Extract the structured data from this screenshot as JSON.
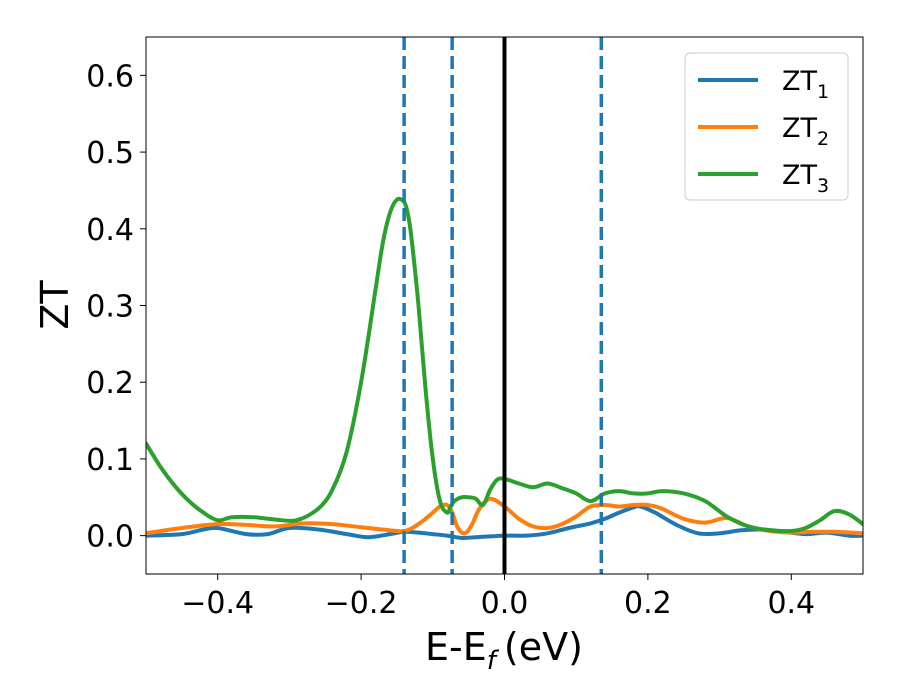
{
  "chart_data": {
    "type": "line",
    "title": "",
    "xlabel": {
      "main": "E-E",
      "sub": "f",
      "unit": "(eV)"
    },
    "ylabel": "ZT",
    "xlim": [
      -0.5,
      0.5
    ],
    "ylim": [
      -0.05,
      0.65
    ],
    "xticks": [
      -0.4,
      -0.2,
      0.0,
      0.2,
      0.4
    ],
    "xtick_labels": [
      "−0.4",
      "−0.2",
      "0.0",
      "0.2",
      "0.4"
    ],
    "yticks": [
      0.0,
      0.1,
      0.2,
      0.3,
      0.4,
      0.5,
      0.6
    ],
    "ytick_labels": [
      "0.0",
      "0.1",
      "0.2",
      "0.3",
      "0.4",
      "0.5",
      "0.6"
    ],
    "grid": false,
    "legend_position": "top-right",
    "vertical_lines": [
      {
        "x": 0.0,
        "style": "solid",
        "color": "#000000"
      },
      {
        "x": -0.14,
        "style": "dashed",
        "color": "#1f77b4"
      },
      {
        "x": -0.073,
        "style": "dashed",
        "color": "#1f77b4"
      },
      {
        "x": 0.135,
        "style": "dashed",
        "color": "#1f77b4"
      }
    ],
    "series": [
      {
        "name": "ZT1",
        "label_main": "ZT",
        "label_sub": "1",
        "color": "#1f77b4",
        "x": [
          -0.5,
          -0.45,
          -0.42,
          -0.4,
          -0.36,
          -0.33,
          -0.3,
          -0.26,
          -0.22,
          -0.19,
          -0.16,
          -0.14,
          -0.12,
          -0.1,
          -0.08,
          -0.06,
          -0.04,
          -0.02,
          0.0,
          0.03,
          0.06,
          0.09,
          0.12,
          0.14,
          0.16,
          0.18,
          0.19,
          0.21,
          0.24,
          0.27,
          0.3,
          0.33,
          0.36,
          0.39,
          0.42,
          0.45,
          0.48,
          0.5
        ],
        "y": [
          0.0,
          0.002,
          0.008,
          0.01,
          0.002,
          0.002,
          0.01,
          0.008,
          0.002,
          -0.002,
          0.002,
          0.005,
          0.004,
          0.002,
          0.0,
          -0.003,
          -0.002,
          -0.001,
          0.0,
          0.0,
          0.003,
          0.01,
          0.016,
          0.022,
          0.03,
          0.037,
          0.038,
          0.03,
          0.014,
          0.003,
          0.003,
          0.007,
          0.008,
          0.005,
          0.002,
          0.004,
          0.0,
          0.0
        ]
      },
      {
        "name": "ZT2",
        "label_main": "ZT",
        "label_sub": "2",
        "color": "#ff7f0e",
        "x": [
          -0.5,
          -0.45,
          -0.4,
          -0.36,
          -0.32,
          -0.28,
          -0.24,
          -0.2,
          -0.17,
          -0.14,
          -0.12,
          -0.1,
          -0.09,
          -0.08,
          -0.073,
          -0.065,
          -0.055,
          -0.045,
          -0.035,
          -0.02,
          0.0,
          0.02,
          0.04,
          0.06,
          0.08,
          0.1,
          0.12,
          0.14,
          0.16,
          0.18,
          0.2,
          0.22,
          0.25,
          0.28,
          0.31,
          0.34,
          0.37,
          0.4,
          0.43,
          0.46,
          0.5
        ],
        "y": [
          0.003,
          0.01,
          0.015,
          0.014,
          0.012,
          0.016,
          0.015,
          0.011,
          0.008,
          0.006,
          0.015,
          0.03,
          0.038,
          0.04,
          0.03,
          0.01,
          0.003,
          0.015,
          0.035,
          0.048,
          0.038,
          0.022,
          0.012,
          0.01,
          0.015,
          0.025,
          0.038,
          0.04,
          0.038,
          0.04,
          0.04,
          0.035,
          0.022,
          0.017,
          0.023,
          0.012,
          0.006,
          0.004,
          0.005,
          0.005,
          0.003
        ]
      },
      {
        "name": "ZT3",
        "label_main": "ZT",
        "label_sub": "3",
        "color": "#2ca02c",
        "x": [
          -0.5,
          -0.48,
          -0.46,
          -0.44,
          -0.42,
          -0.4,
          -0.38,
          -0.35,
          -0.32,
          -0.29,
          -0.26,
          -0.24,
          -0.22,
          -0.2,
          -0.18,
          -0.17,
          -0.16,
          -0.15,
          -0.14,
          -0.135,
          -0.13,
          -0.12,
          -0.11,
          -0.1,
          -0.09,
          -0.08,
          -0.075,
          -0.07,
          -0.06,
          -0.05,
          -0.04,
          -0.03,
          -0.02,
          -0.01,
          0.0,
          0.02,
          0.04,
          0.06,
          0.08,
          0.1,
          0.12,
          0.14,
          0.16,
          0.18,
          0.2,
          0.22,
          0.25,
          0.28,
          0.31,
          0.34,
          0.37,
          0.4,
          0.42,
          0.44,
          0.46,
          0.48,
          0.5
        ],
        "y": [
          0.12,
          0.09,
          0.065,
          0.045,
          0.03,
          0.02,
          0.024,
          0.024,
          0.021,
          0.02,
          0.035,
          0.06,
          0.11,
          0.2,
          0.32,
          0.38,
          0.42,
          0.438,
          0.435,
          0.42,
          0.39,
          0.3,
          0.19,
          0.1,
          0.045,
          0.03,
          0.038,
          0.045,
          0.05,
          0.05,
          0.048,
          0.04,
          0.06,
          0.073,
          0.074,
          0.068,
          0.063,
          0.068,
          0.062,
          0.055,
          0.045,
          0.055,
          0.058,
          0.055,
          0.055,
          0.058,
          0.055,
          0.045,
          0.025,
          0.012,
          0.007,
          0.006,
          0.01,
          0.02,
          0.032,
          0.028,
          0.015
        ]
      }
    ]
  }
}
